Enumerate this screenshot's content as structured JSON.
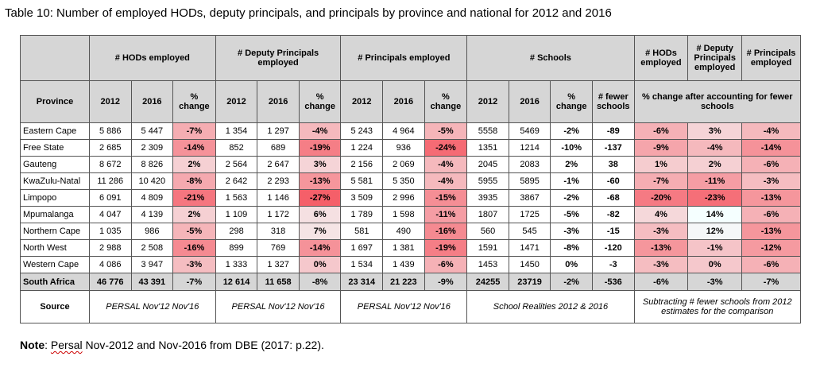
{
  "caption": "Table 10: Number of employed HODs, deputy principals, and principals by province and national for 2012 and 2016",
  "group_headers": {
    "hods": "# HODs employed",
    "deputy": "# Deputy Principals employed",
    "principals": "# Principals employed",
    "schools": "# Schools",
    "hods_after": "# HODs employed",
    "deputy_after": "# Deputy Principals employed",
    "principals_after": "# Principals employed"
  },
  "sub_headers": {
    "province": "Province",
    "y2012": "2012",
    "y2016": "2016",
    "pct_change": "% change",
    "fewer_schools": "# fewer schools",
    "after_accounting": "% change after accounting for fewer schools"
  },
  "rows": [
    {
      "province": "Eastern Cape",
      "hods_2012": "5 886",
      "hods_2016": "5 447",
      "hods_pct": "-7%",
      "dep_2012": "1 354",
      "dep_2016": "1 297",
      "dep_pct": "-4%",
      "prin_2012": "5 243",
      "prin_2016": "4 964",
      "prin_pct": "-5%",
      "sch_2012": "5558",
      "sch_2016": "5469",
      "sch_pct": "-2%",
      "fewer": "-89",
      "adj_hods": "-6%",
      "adj_dep": "3%",
      "adj_prin": "-4%"
    },
    {
      "province": "Free State",
      "hods_2012": "2 685",
      "hods_2016": "2 309",
      "hods_pct": "-14%",
      "dep_2012": "852",
      "dep_2016": "689",
      "dep_pct": "-19%",
      "prin_2012": "1 224",
      "prin_2016": "936",
      "prin_pct": "-24%",
      "sch_2012": "1351",
      "sch_2016": "1214",
      "sch_pct": "-10%",
      "fewer": "-137",
      "adj_hods": "-9%",
      "adj_dep": "-4%",
      "adj_prin": "-14%"
    },
    {
      "province": "Gauteng",
      "hods_2012": "8 672",
      "hods_2016": "8 826",
      "hods_pct": "2%",
      "dep_2012": "2 564",
      "dep_2016": "2 647",
      "dep_pct": "3%",
      "prin_2012": "2 156",
      "prin_2016": "2 069",
      "prin_pct": "-4%",
      "sch_2012": "2045",
      "sch_2016": "2083",
      "sch_pct": "2%",
      "fewer": "38",
      "adj_hods": "1%",
      "adj_dep": "2%",
      "adj_prin": "-6%"
    },
    {
      "province": "KwaZulu-Natal",
      "hods_2012": "11 286",
      "hods_2016": "10 420",
      "hods_pct": "-8%",
      "dep_2012": "2 642",
      "dep_2016": "2 293",
      "dep_pct": "-13%",
      "prin_2012": "5 581",
      "prin_2016": "5 350",
      "prin_pct": "-4%",
      "sch_2012": "5955",
      "sch_2016": "5895",
      "sch_pct": "-1%",
      "fewer": "-60",
      "adj_hods": "-7%",
      "adj_dep": "-11%",
      "adj_prin": "-3%"
    },
    {
      "province": "Limpopo",
      "hods_2012": "6 091",
      "hods_2016": "4 809",
      "hods_pct": "-21%",
      "dep_2012": "1 563",
      "dep_2016": "1 146",
      "dep_pct": "-27%",
      "prin_2012": "3 509",
      "prin_2016": "2 996",
      "prin_pct": "-15%",
      "sch_2012": "3935",
      "sch_2016": "3867",
      "sch_pct": "-2%",
      "fewer": "-68",
      "adj_hods": "-20%",
      "adj_dep": "-23%",
      "adj_prin": "-13%"
    },
    {
      "province": "Mpumalanga",
      "hods_2012": "4 047",
      "hods_2016": "4 139",
      "hods_pct": "2%",
      "dep_2012": "1 109",
      "dep_2016": "1 172",
      "dep_pct": "6%",
      "prin_2012": "1 789",
      "prin_2016": "1 598",
      "prin_pct": "-11%",
      "sch_2012": "1807",
      "sch_2016": "1725",
      "sch_pct": "-5%",
      "fewer": "-82",
      "adj_hods": "4%",
      "adj_dep": "14%",
      "adj_prin": "-6%"
    },
    {
      "province": "Northern Cape",
      "hods_2012": "1 035",
      "hods_2016": "986",
      "hods_pct": "-5%",
      "dep_2012": "298",
      "dep_2016": "318",
      "dep_pct": "7%",
      "prin_2012": "581",
      "prin_2016": "490",
      "prin_pct": "-16%",
      "sch_2012": "560",
      "sch_2016": "545",
      "sch_pct": "-3%",
      "fewer": "-15",
      "adj_hods": "-3%",
      "adj_dep": "12%",
      "adj_prin": "-13%"
    },
    {
      "province": "North West",
      "hods_2012": "2 988",
      "hods_2016": "2 508",
      "hods_pct": "-16%",
      "dep_2012": "899",
      "dep_2016": "769",
      "dep_pct": "-14%",
      "prin_2012": "1 697",
      "prin_2016": "1 381",
      "prin_pct": "-19%",
      "sch_2012": "1591",
      "sch_2016": "1471",
      "sch_pct": "-8%",
      "fewer": "-120",
      "adj_hods": "-13%",
      "adj_dep": "-1%",
      "adj_prin": "-12%"
    },
    {
      "province": "Western Cape",
      "hods_2012": "4 086",
      "hods_2016": "3 947",
      "hods_pct": "-3%",
      "dep_2012": "1 333",
      "dep_2016": "1 327",
      "dep_pct": "0%",
      "prin_2012": "1 534",
      "prin_2016": "1 439",
      "prin_pct": "-6%",
      "sch_2012": "1453",
      "sch_2016": "1450",
      "sch_pct": "0%",
      "fewer": "-3",
      "adj_hods": "-3%",
      "adj_dep": "0%",
      "adj_prin": "-6%"
    }
  ],
  "total": {
    "province": "South Africa",
    "hods_2012": "46 776",
    "hods_2016": "43 391",
    "hods_pct": "-7%",
    "dep_2012": "12 614",
    "dep_2016": "11 658",
    "dep_pct": "-8%",
    "prin_2012": "23 314",
    "prin_2016": "21 223",
    "prin_pct": "-9%",
    "sch_2012": "24255",
    "sch_2016": "23719",
    "sch_pct": "-2%",
    "fewer": "-536",
    "adj_hods": "-6%",
    "adj_dep": "-3%",
    "adj_prin": "-7%"
  },
  "source": {
    "label": "Source",
    "hods": "PERSAL Nov'12 Nov'16",
    "deputy": "PERSAL Nov'12 Nov'16",
    "principals": "PERSAL Nov'12 Nov'16",
    "schools": "School Realities 2012 & 2016",
    "after": "Subtracting # fewer schools from 2012 estimates for the comparison"
  },
  "note": {
    "label": "Note",
    "word": "Persal",
    "rest": " Nov-2012 and Nov-2016 from DBE (2017: p.22)."
  },
  "colors": {
    "header_grey": "#d6d6d6",
    "heat_red": "#f0606a",
    "border": "#555555"
  }
}
